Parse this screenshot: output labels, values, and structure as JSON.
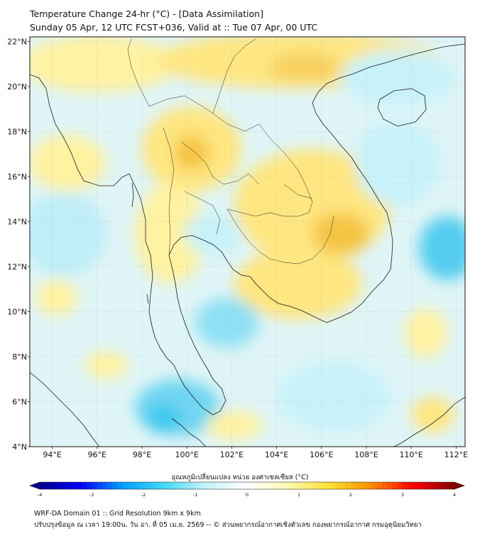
{
  "title_line1": "Temperature Change 24-hr (°C) - [Data Assimilation]",
  "title_line2": "Sunday 05 Apr, 12 UTC FCST+036, Valid at :: Tue 07 Apr, 00 UTC",
  "lat_ticks": [
    {
      "value": 22,
      "label": "22°N"
    },
    {
      "value": 20,
      "label": "20°N"
    },
    {
      "value": 18,
      "label": "18°N"
    },
    {
      "value": 16,
      "label": "16°N"
    },
    {
      "value": 14,
      "label": "14°N"
    },
    {
      "value": 12,
      "label": "12°N"
    },
    {
      "value": 10,
      "label": "10°N"
    },
    {
      "value": 8,
      "label": "8°N"
    },
    {
      "value": 6,
      "label": "6°N"
    },
    {
      "value": 4,
      "label": "4°N"
    }
  ],
  "lon_ticks": [
    {
      "value": 94,
      "label": "94°E"
    },
    {
      "value": 96,
      "label": "96°E"
    },
    {
      "value": 98,
      "label": "98°E"
    },
    {
      "value": 100,
      "label": "100°E"
    },
    {
      "value": 102,
      "label": "102°E"
    },
    {
      "value": 104,
      "label": "104°E"
    },
    {
      "value": 106,
      "label": "106°E"
    },
    {
      "value": 108,
      "label": "108°E"
    },
    {
      "value": 110,
      "label": "110°E"
    },
    {
      "value": 112,
      "label": "112°E"
    }
  ],
  "extent": {
    "lon": [
      93,
      112.4
    ],
    "lat": [
      4,
      22.2
    ]
  },
  "colorbar": {
    "label": "อุณหภูมิเปลี่ยนแปลง หน่วย องศาเซลเซียส (°C)",
    "range": [
      -4,
      4
    ],
    "ticks": [
      {
        "value": -4,
        "label": "-4"
      },
      {
        "value": -3,
        "label": "-3"
      },
      {
        "value": -2,
        "label": "-2"
      },
      {
        "value": -1,
        "label": "-1"
      },
      {
        "value": 0,
        "label": "0"
      },
      {
        "value": 1,
        "label": "1"
      },
      {
        "value": 2,
        "label": "2"
      },
      {
        "value": 3,
        "label": "3"
      },
      {
        "value": 4,
        "label": "4"
      }
    ],
    "colors": [
      "#00008b",
      "#0000ff",
      "#00a0ff",
      "#40d8f8",
      "#c8f2fa",
      "#ffffff",
      "#fff8b0",
      "#ffe030",
      "#ff8c00",
      "#ff0000",
      "#800000"
    ]
  },
  "footer_line1": "WRF-DA Domain 01 :: Grid Resolution 9km x 9km",
  "footer_line2": "ปรับปรุงข้อมูล ณ เวลา 19:00น. วัน อา. ที่ 05 เม.ย. 2569 -- © ส่วนพยากรณ์อากาศเชิงตัวเลข กองพยากรณ์อากาศ กรมอุตุนิยมวิทยา",
  "field_palette": {
    "warm": "#ffe680",
    "warm_strong": "#f5c542",
    "cool": "#bfeef8",
    "cool_strong": "#55cdf0",
    "neutral": "#eef9f6"
  }
}
